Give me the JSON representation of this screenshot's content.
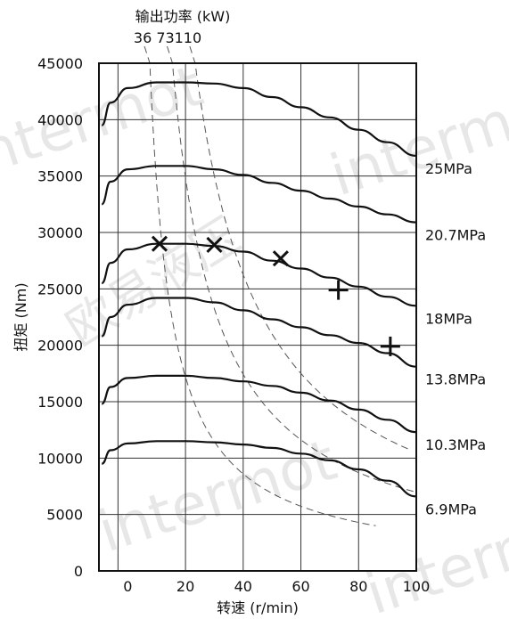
{
  "chart_data": {
    "type": "line",
    "xlabel": "转速 (r/min)",
    "ylabel": "扭矩 (Nm)",
    "xlim": [
      0,
      100
    ],
    "ylim": [
      0,
      45000
    ],
    "x_ticks": [
      0,
      20,
      40,
      60,
      80,
      100
    ],
    "y_ticks": [
      0,
      5000,
      10000,
      15000,
      20000,
      25000,
      30000,
      35000,
      40000,
      45000
    ],
    "grid": true,
    "series": [
      {
        "name": "25MPa",
        "x": [
          -9,
          -6,
          0,
          10,
          20,
          30,
          40,
          50,
          60,
          70,
          80,
          90,
          100
        ],
        "values": [
          39500,
          41500,
          42800,
          43300,
          43300,
          43200,
          42800,
          42000,
          41100,
          40200,
          39100,
          38000,
          36800
        ]
      },
      {
        "name": "20.7MPa",
        "x": [
          -9,
          -6,
          0,
          10,
          20,
          30,
          40,
          50,
          60,
          70,
          80,
          90,
          100
        ],
        "values": [
          32500,
          34500,
          35600,
          35900,
          35900,
          35600,
          35100,
          34400,
          33700,
          33000,
          32300,
          31600,
          30900
        ]
      },
      {
        "name": "18MPa",
        "x": [
          -9,
          -6,
          0,
          10,
          20,
          30,
          40,
          50,
          60,
          70,
          80,
          90,
          100
        ],
        "values": [
          25500,
          27300,
          28500,
          29000,
          29000,
          28800,
          28300,
          27500,
          26800,
          26000,
          25200,
          24300,
          23500
        ]
      },
      {
        "name": "13.8MPa",
        "x": [
          -9,
          -6,
          0,
          10,
          20,
          30,
          40,
          50,
          60,
          70,
          80,
          90,
          100
        ],
        "values": [
          20800,
          22500,
          23600,
          24200,
          24200,
          23800,
          23100,
          22300,
          21600,
          20900,
          20200,
          19300,
          18100
        ]
      },
      {
        "name": "10.3MPa",
        "x": [
          -9,
          -6,
          0,
          10,
          20,
          30,
          40,
          50,
          60,
          70,
          80,
          90,
          100
        ],
        "values": [
          14800,
          16300,
          17100,
          17300,
          17300,
          17100,
          16800,
          16400,
          15800,
          15100,
          14300,
          13400,
          12300
        ]
      },
      {
        "name": "6.9MPa",
        "x": [
          -9,
          -6,
          0,
          10,
          20,
          30,
          40,
          50,
          60,
          70,
          80,
          90,
          100
        ],
        "values": [
          9500,
          10700,
          11300,
          11500,
          11500,
          11400,
          11200,
          10900,
          10400,
          9800,
          9000,
          8000,
          6600
        ]
      }
    ],
    "power_lines": {
      "title": "输出功率 (kW)",
      "values_kw": [
        36,
        73,
        110
      ]
    },
    "markers": {
      "x_marks": [
        {
          "x": 11,
          "y": 29000
        },
        {
          "x": 30,
          "y": 28900
        },
        {
          "x": 53,
          "y": 27700
        }
      ],
      "plus_marks": [
        {
          "x": 73,
          "y": 24900
        },
        {
          "x": 91,
          "y": 19900
        }
      ]
    }
  },
  "watermark": {
    "text_latin": "intermot",
    "text_cn": "欧易液压"
  }
}
